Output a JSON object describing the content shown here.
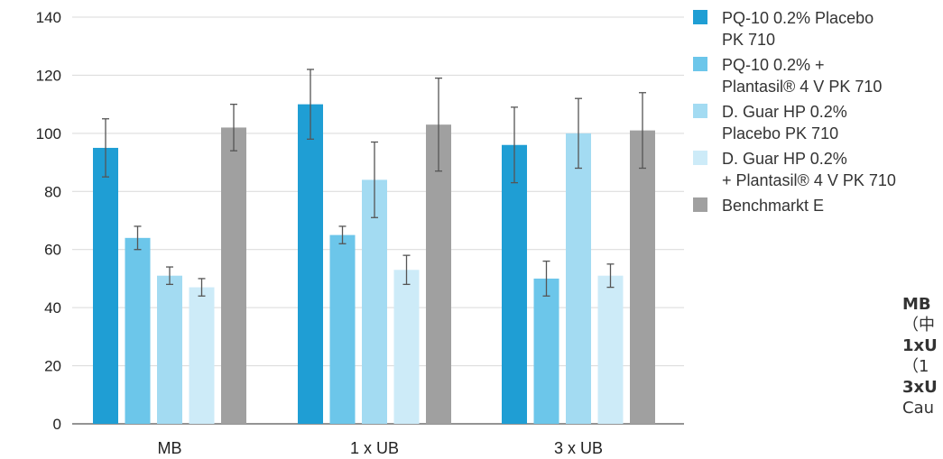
{
  "chart_data": {
    "type": "bar",
    "categories": [
      "MB",
      "1 x UB",
      "3 x UB"
    ],
    "ylim": [
      0,
      140
    ],
    "yticks": [
      0,
      20,
      40,
      60,
      80,
      100,
      120,
      140
    ],
    "grid": true,
    "legend_position": "right",
    "error_bars": true,
    "series": [
      {
        "name": "PQ-10 0.2% Placebo\nPK 710",
        "color": "#1f9ed4",
        "values": [
          95,
          110,
          96
        ],
        "err_low": [
          85,
          98,
          83
        ],
        "err_high": [
          105,
          122,
          109
        ]
      },
      {
        "name": "PQ-10 0.2% +\nPlantasil® 4 V PK 710",
        "color": "#6cc6ea",
        "values": [
          64,
          65,
          50
        ],
        "err_low": [
          60,
          62,
          44
        ],
        "err_high": [
          68,
          68,
          56
        ]
      },
      {
        "name": "D. Guar HP 0.2%\nPlacebo PK 710",
        "color": "#a3dbf2",
        "values": [
          51,
          84,
          100
        ],
        "err_low": [
          48,
          71,
          88
        ],
        "err_high": [
          54,
          97,
          112
        ]
      },
      {
        "name": "D. Guar HP 0.2%\n+ Plantasil® 4 V PK 710",
        "color": "#cdebf8",
        "values": [
          47,
          53,
          51
        ],
        "err_low": [
          44,
          48,
          47
        ],
        "err_high": [
          50,
          58,
          55
        ]
      },
      {
        "name": "Benchmarkt E",
        "color": "#a0a0a0",
        "values": [
          102,
          103,
          101
        ],
        "err_low": [
          94,
          87,
          88
        ],
        "err_high": [
          110,
          119,
          114
        ]
      }
    ]
  },
  "side_notes": [
    {
      "text": "MB",
      "bold": true
    },
    {
      "text": "（中",
      "bold": false
    },
    {
      "text": "1xU",
      "bold": true
    },
    {
      "text": "（1",
      "bold": false
    },
    {
      "text": "3xU",
      "bold": true
    },
    {
      "text": "Cau",
      "bold": false
    }
  ]
}
